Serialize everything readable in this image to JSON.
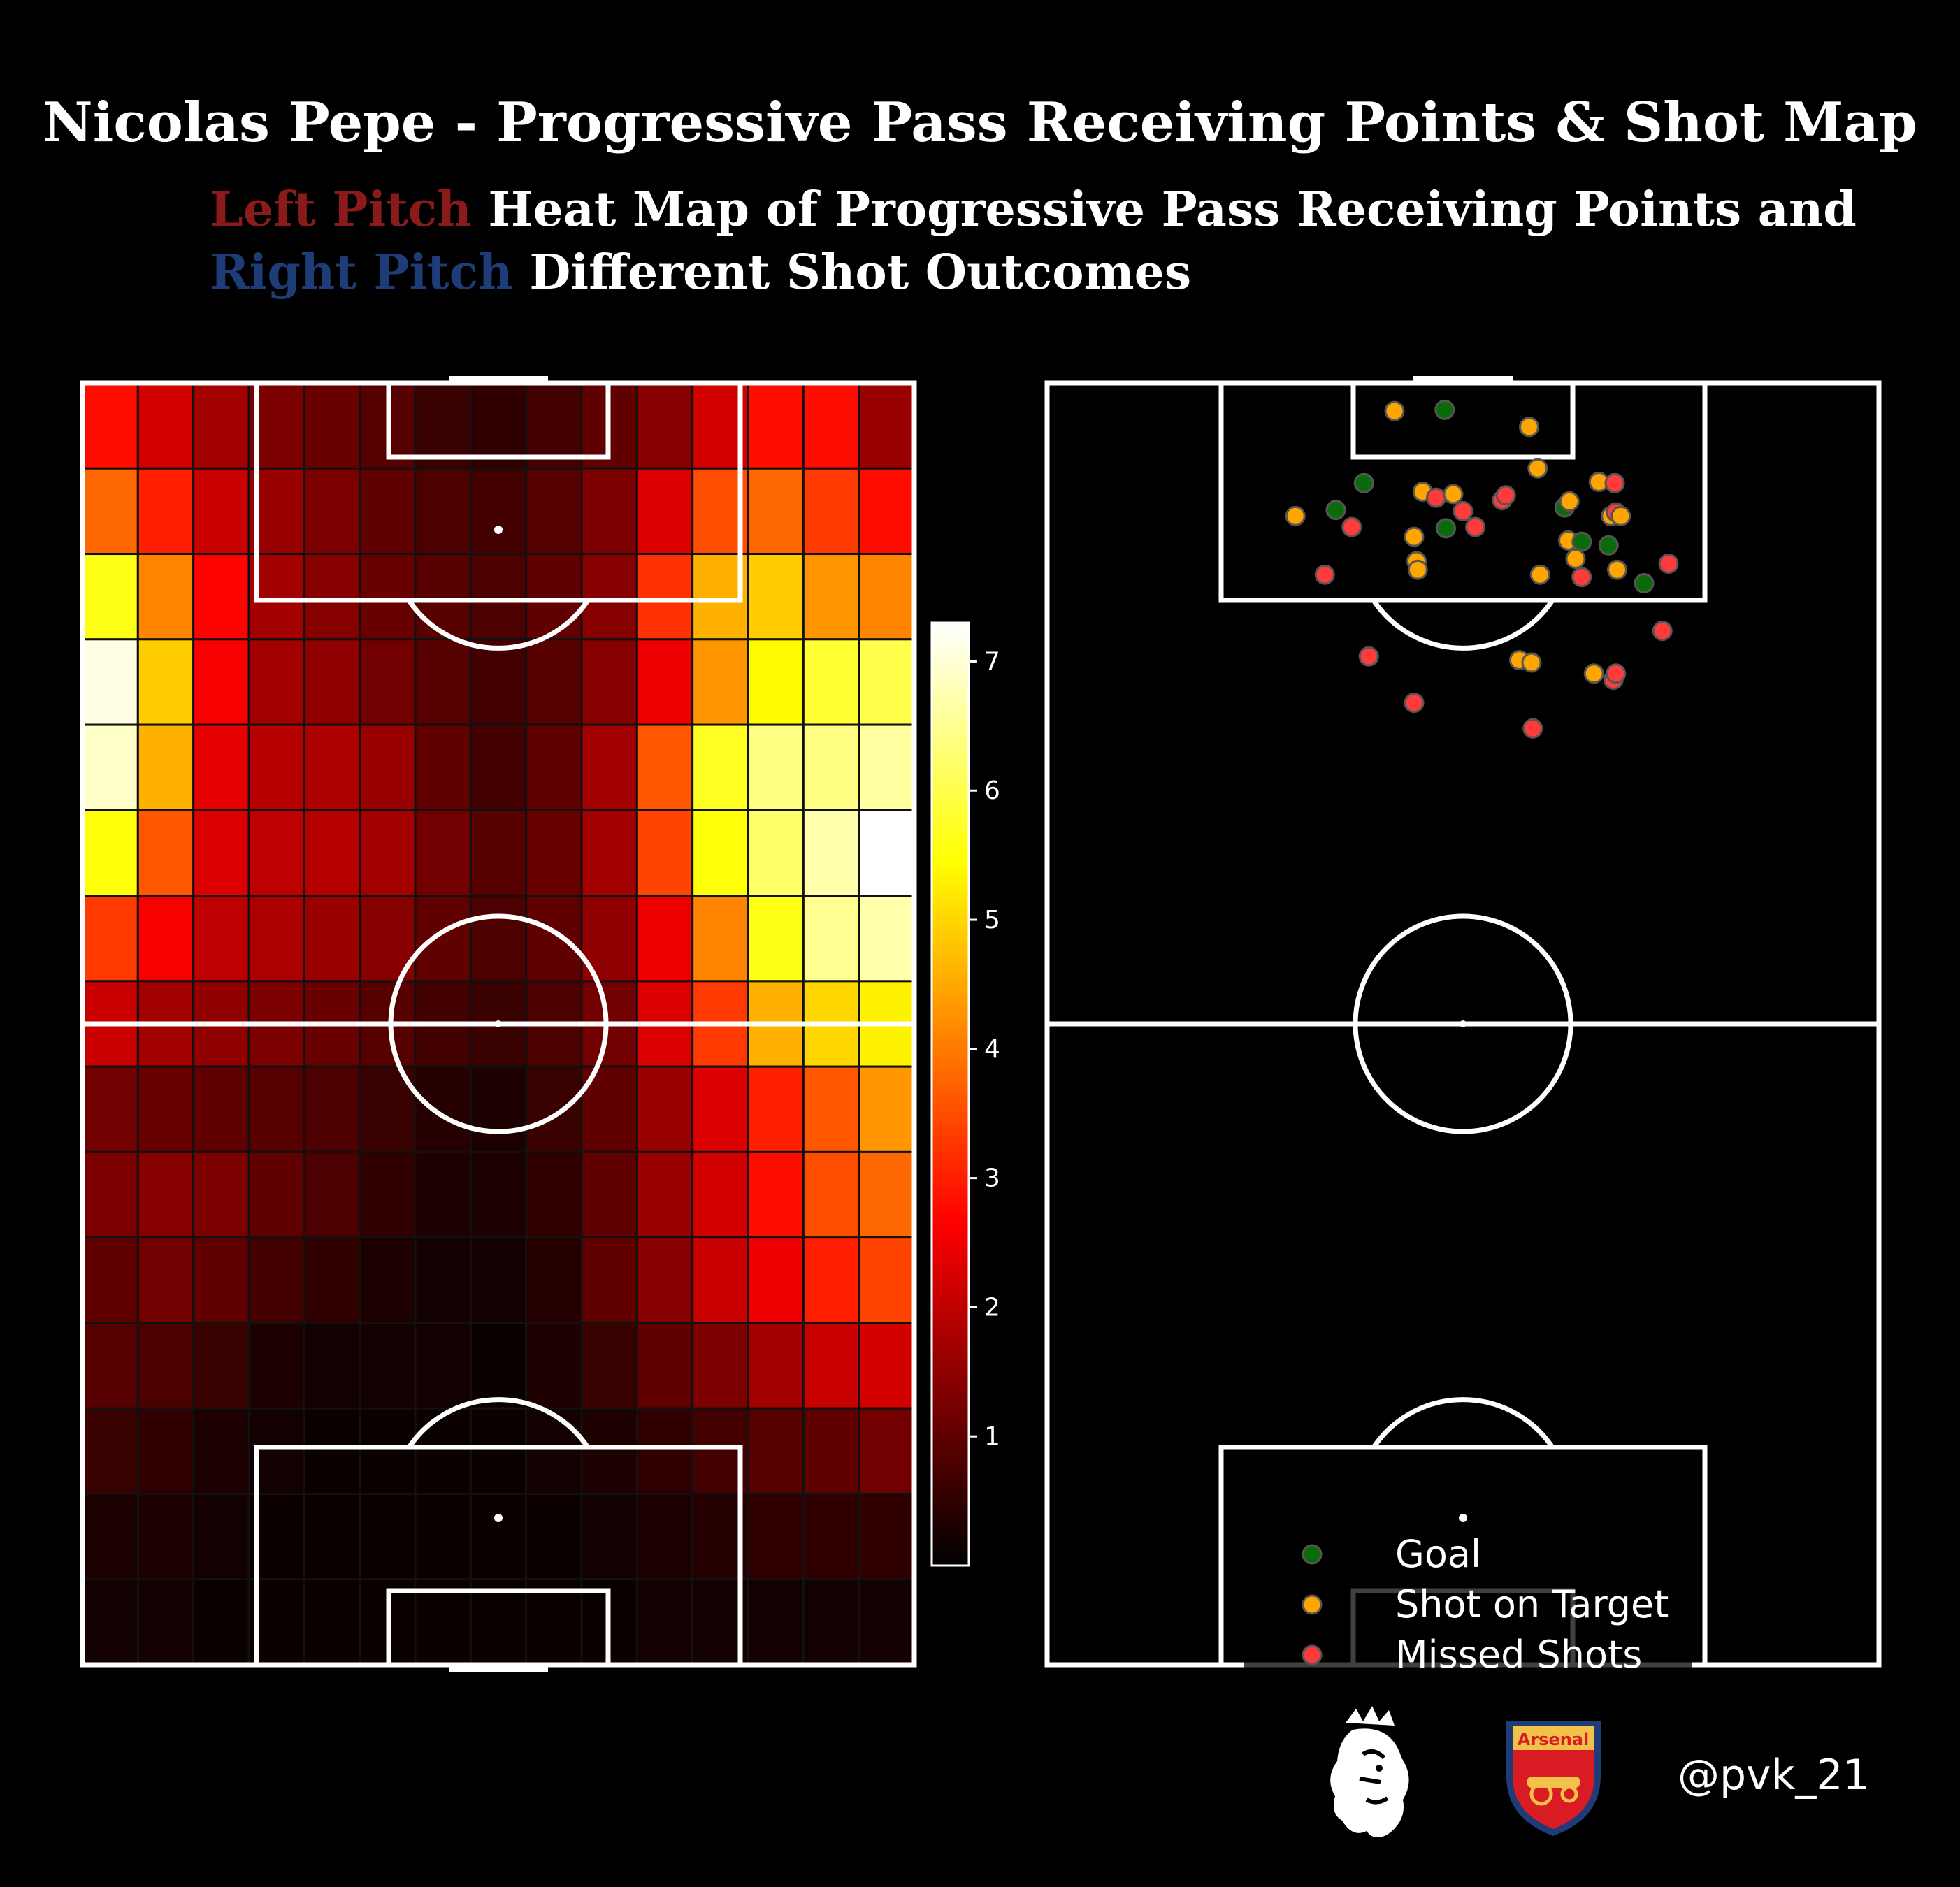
{
  "title": "Nicolas Pepe - Progressive Pass Receiving Points & Shot Map",
  "subtitle": {
    "line1_colored": "Left Pitch",
    "line1_rest": "Heat Map of Progressive Pass Receiving Points and",
    "line2_colored": "Right Pitch",
    "line2_rest": "Different Shot Outcomes"
  },
  "colors": {
    "left_label": "#8b1a1a",
    "right_label": "#1d3c78",
    "goal": "#0b6b0b",
    "on_target": "#ffa500",
    "missed": "#ff3b3b",
    "background": "#000000"
  },
  "handle": "@pvk_21",
  "logos": [
    "premier-league-lion-icon",
    "arsenal-crest-icon"
  ],
  "logo_text": {
    "arsenal": "Arsenal"
  },
  "chart_data": [
    {
      "type": "heatmap",
      "cmap": "hot",
      "colorbar": {
        "range": [
          0,
          7.3
        ],
        "ticks": [
          1,
          2,
          3,
          4,
          5,
          6,
          7
        ]
      },
      "note_rows": "15 rows from attacking goal (top) to own goal (bottom), 15 columns left to right",
      "grid": [
        [
          2.8,
          2.2,
          1.7,
          1.3,
          1.1,
          0.9,
          0.6,
          0.5,
          0.7,
          1.0,
          1.4,
          2.2,
          2.8,
          2.8,
          1.6
        ],
        [
          3.8,
          3.0,
          2.1,
          1.6,
          1.3,
          1.0,
          0.8,
          0.7,
          0.9,
          1.3,
          2.3,
          3.5,
          3.8,
          3.3,
          2.8
        ],
        [
          5.6,
          4.1,
          2.7,
          1.7,
          1.4,
          1.1,
          0.9,
          0.8,
          1.0,
          1.4,
          3.2,
          4.6,
          4.9,
          4.3,
          4.1
        ],
        [
          7.1,
          4.9,
          2.6,
          1.7,
          1.5,
          1.2,
          0.9,
          0.7,
          0.9,
          1.4,
          2.5,
          4.3,
          5.4,
          5.8,
          6.0
        ],
        [
          6.9,
          4.6,
          2.4,
          1.9,
          1.8,
          1.6,
          1.0,
          0.7,
          1.0,
          1.7,
          3.6,
          5.7,
          6.4,
          6.4,
          6.6
        ],
        [
          5.5,
          3.6,
          2.3,
          2.0,
          1.9,
          1.7,
          1.2,
          0.9,
          1.1,
          1.7,
          3.4,
          5.5,
          6.2,
          6.7,
          7.3
        ],
        [
          3.3,
          2.6,
          2.0,
          1.8,
          1.6,
          1.4,
          1.0,
          0.8,
          1.0,
          1.5,
          2.5,
          4.1,
          5.6,
          6.5,
          6.7
        ],
        [
          2.1,
          1.7,
          1.5,
          1.3,
          1.1,
          0.9,
          0.7,
          0.6,
          0.8,
          1.2,
          2.3,
          3.3,
          4.6,
          5.0,
          5.3
        ],
        [
          1.2,
          1.1,
          1.0,
          0.9,
          0.8,
          0.6,
          0.4,
          0.3,
          0.6,
          1.0,
          1.6,
          2.3,
          3.0,
          3.6,
          4.3
        ],
        [
          1.3,
          1.4,
          1.3,
          1.0,
          0.8,
          0.5,
          0.3,
          0.3,
          0.5,
          1.0,
          1.6,
          2.2,
          2.8,
          3.5,
          3.8
        ],
        [
          1.0,
          1.2,
          1.0,
          0.7,
          0.5,
          0.3,
          0.2,
          0.2,
          0.4,
          1.0,
          1.4,
          2.1,
          2.5,
          3.0,
          3.4
        ],
        [
          0.9,
          0.8,
          0.6,
          0.3,
          0.2,
          0.2,
          0.2,
          0.1,
          0.3,
          0.6,
          1.0,
          1.3,
          1.7,
          2.1,
          2.2
        ],
        [
          0.6,
          0.5,
          0.3,
          0.2,
          0.1,
          0.1,
          0.1,
          0.1,
          0.2,
          0.3,
          0.5,
          0.7,
          0.9,
          1.0,
          1.2
        ],
        [
          0.3,
          0.3,
          0.2,
          0.1,
          0.1,
          0.1,
          0.1,
          0.1,
          0.1,
          0.2,
          0.3,
          0.4,
          0.5,
          0.5,
          0.5
        ],
        [
          0.2,
          0.2,
          0.1,
          0.1,
          0.1,
          0.1,
          0.1,
          0.1,
          0.1,
          0.1,
          0.2,
          0.2,
          0.2,
          0.2,
          0.2
        ]
      ]
    },
    {
      "type": "scatter",
      "legend": [
        {
          "key": "goal",
          "label": "Goal"
        },
        {
          "key": "on_target",
          "label": "Shot on Target"
        },
        {
          "key": "missed",
          "label": "Missed Shots"
        }
      ],
      "pitch": {
        "width": 68,
        "length": 105
      },
      "shots": [
        {
          "x": 28.4,
          "y": 2.3,
          "o": "on_target"
        },
        {
          "x": 32.5,
          "y": 2.2,
          "o": "goal"
        },
        {
          "x": 39.4,
          "y": 3.6,
          "o": "on_target"
        },
        {
          "x": 40.1,
          "y": 7.0,
          "o": "on_target"
        },
        {
          "x": 25.9,
          "y": 8.2,
          "o": "goal"
        },
        {
          "x": 20.3,
          "y": 10.9,
          "o": "on_target"
        },
        {
          "x": 23.6,
          "y": 10.4,
          "o": "goal"
        },
        {
          "x": 24.9,
          "y": 11.8,
          "o": "missed"
        },
        {
          "x": 30.7,
          "y": 8.9,
          "o": "on_target"
        },
        {
          "x": 31.8,
          "y": 9.4,
          "o": "missed"
        },
        {
          "x": 33.2,
          "y": 9.1,
          "o": "on_target"
        },
        {
          "x": 34.0,
          "y": 10.5,
          "o": "missed"
        },
        {
          "x": 35.0,
          "y": 11.8,
          "o": "missed"
        },
        {
          "x": 37.2,
          "y": 9.6,
          "o": "missed"
        },
        {
          "x": 37.5,
          "y": 9.2,
          "o": "missed"
        },
        {
          "x": 32.6,
          "y": 11.9,
          "o": "goal"
        },
        {
          "x": 30.0,
          "y": 12.6,
          "o": "on_target"
        },
        {
          "x": 42.3,
          "y": 10.2,
          "o": "goal"
        },
        {
          "x": 42.7,
          "y": 9.7,
          "o": "on_target"
        },
        {
          "x": 45.1,
          "y": 8.1,
          "o": "on_target"
        },
        {
          "x": 46.4,
          "y": 8.2,
          "o": "missed"
        },
        {
          "x": 46.1,
          "y": 10.9,
          "o": "on_target"
        },
        {
          "x": 46.5,
          "y": 10.6,
          "o": "missed"
        },
        {
          "x": 46.9,
          "y": 10.9,
          "o": "on_target"
        },
        {
          "x": 42.6,
          "y": 12.9,
          "o": "on_target"
        },
        {
          "x": 43.7,
          "y": 13.0,
          "o": "goal"
        },
        {
          "x": 45.9,
          "y": 13.3,
          "o": "goal"
        },
        {
          "x": 43.2,
          "y": 14.4,
          "o": "on_target"
        },
        {
          "x": 30.2,
          "y": 14.6,
          "o": "on_target"
        },
        {
          "x": 30.3,
          "y": 15.3,
          "o": "on_target"
        },
        {
          "x": 22.7,
          "y": 15.7,
          "o": "missed"
        },
        {
          "x": 40.3,
          "y": 15.7,
          "o": "on_target"
        },
        {
          "x": 43.7,
          "y": 15.9,
          "o": "missed"
        },
        {
          "x": 46.6,
          "y": 15.3,
          "o": "on_target"
        },
        {
          "x": 48.8,
          "y": 16.4,
          "o": "goal"
        },
        {
          "x": 50.8,
          "y": 14.8,
          "o": "missed"
        },
        {
          "x": 50.3,
          "y": 20.3,
          "o": "missed"
        },
        {
          "x": 26.3,
          "y": 22.4,
          "o": "missed"
        },
        {
          "x": 38.6,
          "y": 22.7,
          "o": "on_target"
        },
        {
          "x": 39.6,
          "y": 22.9,
          "o": "on_target"
        },
        {
          "x": 44.7,
          "y": 23.8,
          "o": "on_target"
        },
        {
          "x": 46.3,
          "y": 24.3,
          "o": "missed"
        },
        {
          "x": 46.5,
          "y": 23.8,
          "o": "missed"
        },
        {
          "x": 30.0,
          "y": 26.2,
          "o": "missed"
        },
        {
          "x": 39.7,
          "y": 28.3,
          "o": "missed"
        }
      ]
    }
  ]
}
